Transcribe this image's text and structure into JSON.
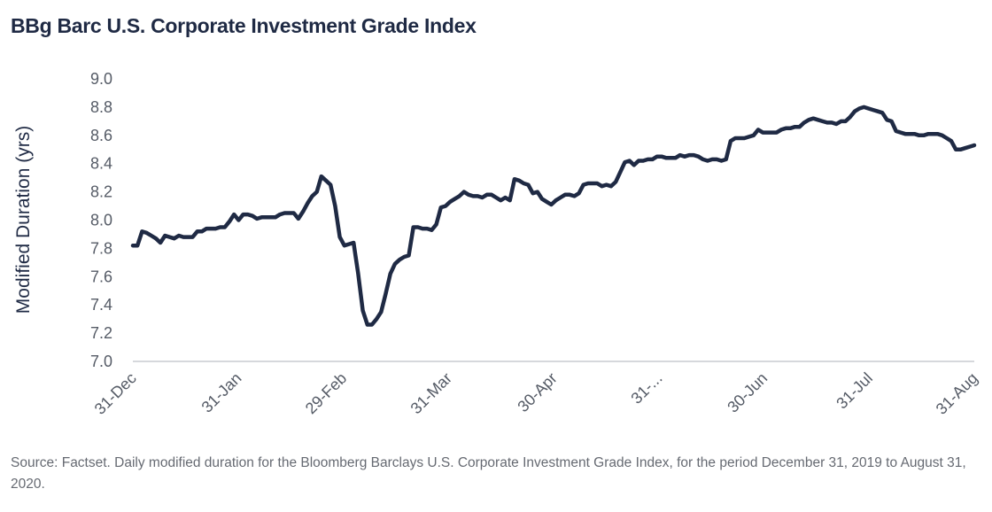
{
  "chart_data": {
    "type": "line",
    "title": "BBg Barc U.S. Corporate Investment Grade Index",
    "ylabel": "Modified Duration (yrs)",
    "xlabel": "",
    "ylim": [
      7.0,
      9.0
    ],
    "yticks": [
      "9.0",
      "8.8",
      "8.6",
      "8.4",
      "8.2",
      "8.0",
      "7.8",
      "7.6",
      "7.4",
      "7.2",
      "7.0"
    ],
    "xticks": [
      "31-Dec",
      "31-Jan",
      "29-Feb",
      "31-Mar",
      "30-Apr",
      "31-...",
      "30-Jun",
      "31-Jul",
      "31-Aug"
    ],
    "grid": false,
    "legend": "none",
    "line_color": "#1f2a44",
    "series": [
      {
        "values": [
          7.82,
          7.82,
          7.92,
          7.91,
          7.89,
          7.87,
          7.84,
          7.89,
          7.88,
          7.87,
          7.89,
          7.88,
          7.88,
          7.88,
          7.92,
          7.92,
          7.94,
          7.94,
          7.94,
          7.95,
          7.95,
          7.99,
          8.04,
          8.0,
          8.04,
          8.04,
          8.03,
          8.01,
          8.02,
          8.02,
          8.02,
          8.02,
          8.04,
          8.05,
          8.05,
          8.05,
          8.01,
          8.06,
          8.12,
          8.17,
          8.2,
          8.31,
          8.28,
          8.25,
          8.1,
          7.88,
          7.82,
          7.83,
          7.84,
          7.62,
          7.36,
          7.26,
          7.26,
          7.3,
          7.35,
          7.48,
          7.62,
          7.69,
          7.72,
          7.74,
          7.75,
          7.95,
          7.95,
          7.94,
          7.94,
          7.93,
          7.97,
          8.09,
          8.1,
          8.13,
          8.15,
          8.17,
          8.2,
          8.18,
          8.17,
          8.17,
          8.16,
          8.18,
          8.18,
          8.16,
          8.14,
          8.16,
          8.14,
          8.29,
          8.28,
          8.26,
          8.25,
          8.19,
          8.2,
          8.15,
          8.13,
          8.11,
          8.14,
          8.16,
          8.18,
          8.18,
          8.17,
          8.19,
          8.25,
          8.26,
          8.26,
          8.26,
          8.24,
          8.25,
          8.24,
          8.27,
          8.34,
          8.41,
          8.42,
          8.39,
          8.42,
          8.42,
          8.43,
          8.43,
          8.45,
          8.45,
          8.44,
          8.44,
          8.44,
          8.46,
          8.45,
          8.46,
          8.46,
          8.45,
          8.43,
          8.42,
          8.43,
          8.43,
          8.42,
          8.43,
          8.56,
          8.58,
          8.58,
          8.58,
          8.59,
          8.6,
          8.64,
          8.62,
          8.62,
          8.62,
          8.62,
          8.64,
          8.65,
          8.65,
          8.66,
          8.66,
          8.69,
          8.71,
          8.72,
          8.71,
          8.7,
          8.69,
          8.69,
          8.68,
          8.7,
          8.7,
          8.73,
          8.77,
          8.79,
          8.8,
          8.79,
          8.78,
          8.77,
          8.76,
          8.71,
          8.7,
          8.63,
          8.62,
          8.61,
          8.61,
          8.61,
          8.6,
          8.6,
          8.61,
          8.61,
          8.61,
          8.6,
          8.58,
          8.56,
          8.5,
          8.5,
          8.51,
          8.52,
          8.53
        ]
      }
    ]
  },
  "footnote": {
    "text": "Source: Factset. Daily modified duration for the Bloomberg Barclays U.S. Corporate Investment Grade Index, for the period December 31, 2019 to August 31, 2020."
  }
}
